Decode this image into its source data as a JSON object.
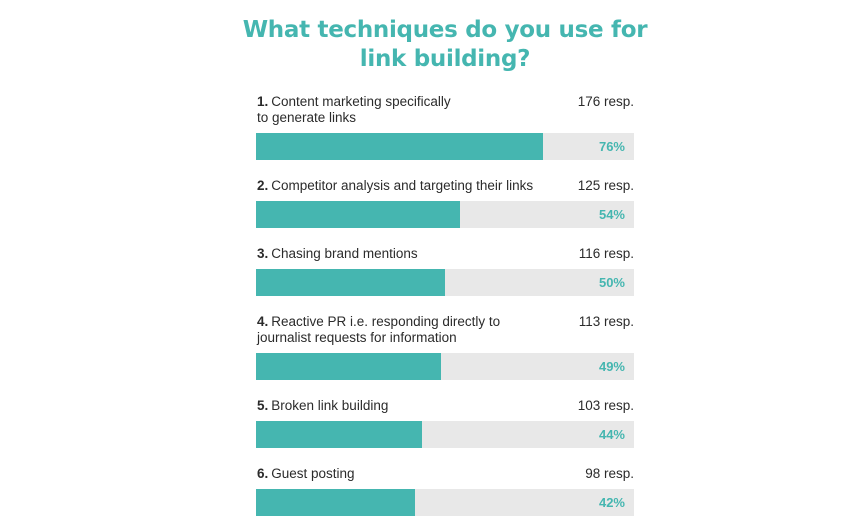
{
  "title_line1": "What techniques do you use for",
  "title_line2": "link building?",
  "colors": {
    "title": "#45b6b0",
    "bar": "#45b6b0",
    "track": "#e8e8e8",
    "percent": "#45b6b0"
  },
  "chart_data": {
    "type": "bar",
    "orientation": "horizontal",
    "title": "What techniques do you use for link building?",
    "xlim": [
      0,
      100
    ],
    "grid": false,
    "categories": [
      "Content marketing specifically to generate links",
      "Competitor analysis and targeting their links",
      "Chasing brand mentions",
      "Reactive PR i.e. responding directly to journalist requests for information",
      "Broken link building",
      "Guest posting"
    ],
    "values": [
      76,
      54,
      50,
      49,
      44,
      42
    ],
    "items": [
      {
        "rank": "1.",
        "label_line1": "Content marketing specifically",
        "label_line2": "to generate links",
        "responses": "176 resp.",
        "percent_label": "76%",
        "value": 76
      },
      {
        "rank": "2.",
        "label_line1": "Competitor analysis and targeting their links",
        "label_line2": "",
        "responses": "125 resp.",
        "percent_label": "54%",
        "value": 54
      },
      {
        "rank": "3.",
        "label_line1": "Chasing brand mentions",
        "label_line2": "",
        "responses": "116 resp.",
        "percent_label": "50%",
        "value": 50
      },
      {
        "rank": "4.",
        "label_line1": "Reactive PR i.e. responding directly to",
        "label_line2": "journalist requests for information",
        "responses": "113 resp.",
        "percent_label": "49%",
        "value": 49
      },
      {
        "rank": "5.",
        "label_line1": "Broken link building",
        "label_line2": "",
        "responses": "103 resp.",
        "percent_label": "44%",
        "value": 44
      },
      {
        "rank": "6.",
        "label_line1": "Guest posting",
        "label_line2": "",
        "responses": "98 resp.",
        "percent_label": "42%",
        "value": 42
      }
    ]
  }
}
